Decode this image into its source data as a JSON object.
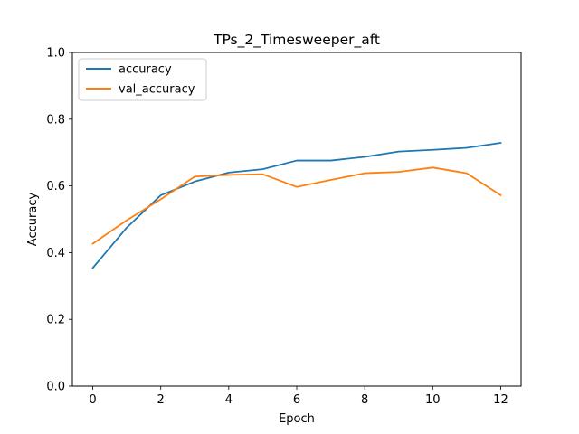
{
  "chart_data": {
    "type": "line",
    "title": "TPs_2_Timesweeper_aft",
    "xlabel": "Epoch",
    "ylabel": "Accuracy",
    "xlim": [
      -0.6,
      12.6
    ],
    "ylim": [
      0.0,
      1.0
    ],
    "xticks": [
      0,
      2,
      4,
      6,
      8,
      10,
      12
    ],
    "xtick_labels": [
      "0",
      "2",
      "4",
      "6",
      "8",
      "10",
      "12"
    ],
    "yticks": [
      0.0,
      0.2,
      0.4,
      0.6,
      0.8,
      1.0
    ],
    "ytick_labels": [
      "0.0",
      "0.2",
      "0.4",
      "0.6",
      "0.8",
      "1.0"
    ],
    "grid": false,
    "legend_position": "top-left",
    "x": [
      0,
      1,
      2,
      3,
      4,
      5,
      6,
      7,
      8,
      9,
      10,
      11,
      12
    ],
    "series": [
      {
        "name": "accuracy",
        "color": "#1f77b4",
        "values": [
          0.354,
          0.475,
          0.572,
          0.613,
          0.64,
          0.65,
          0.676,
          0.676,
          0.687,
          0.703,
          0.708,
          0.714,
          0.729
        ]
      },
      {
        "name": "val_accuracy",
        "color": "#ff7f0e",
        "values": [
          0.427,
          0.497,
          0.56,
          0.628,
          0.633,
          0.635,
          0.597,
          0.618,
          0.638,
          0.642,
          0.655,
          0.638,
          0.572
        ]
      }
    ]
  }
}
